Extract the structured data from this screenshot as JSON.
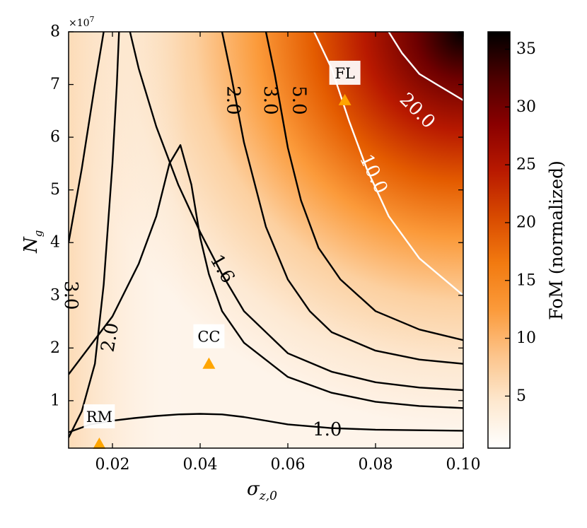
{
  "chart_data": {
    "type": "heatmap",
    "title": "",
    "xlabel": "σ",
    "xlabel_sub": "z,0",
    "ylabel": "N",
    "ylabel_sub": "g",
    "xlim": [
      0.01,
      0.1
    ],
    "ylim": [
      1000000,
      80000000
    ],
    "x_ticks": [
      0.02,
      0.04,
      0.06,
      0.08,
      0.1
    ],
    "x_tick_labels": [
      "0.02",
      "0.04",
      "0.06",
      "0.08",
      "0.10"
    ],
    "y_ticks": [
      1,
      2,
      3,
      4,
      5,
      6,
      7,
      8
    ],
    "y_tick_labels": [
      "1",
      "2",
      "3",
      "4",
      "5",
      "6",
      "7",
      "8"
    ],
    "y_multiplier": "×10",
    "y_multiplier_exp": "7",
    "colorbar": {
      "label": "FoM (normalized)",
      "range": [
        0.5,
        36.5
      ],
      "ticks": [
        5,
        10,
        15,
        20,
        25,
        30,
        35
      ],
      "tick_labels": [
        "5",
        "10",
        "15",
        "20",
        "25",
        "30",
        "35"
      ],
      "colormap": [
        "#ffffff",
        "#fde8cf",
        "#fcc48b",
        "#fb9a3a",
        "#f27a10",
        "#d84a00",
        "#b81900",
        "#8a0000",
        "#4c0000",
        "#000000"
      ]
    },
    "contours": [
      {
        "level": 1.0,
        "label": "1.0",
        "color": "#000000",
        "points": [
          [
            0.01,
            0.4
          ],
          [
            0.015,
            0.55
          ],
          [
            0.02,
            0.62
          ],
          [
            0.025,
            0.67
          ],
          [
            0.03,
            0.71
          ],
          [
            0.035,
            0.74
          ],
          [
            0.04,
            0.75
          ],
          [
            0.045,
            0.74
          ],
          [
            0.05,
            0.69
          ],
          [
            0.06,
            0.55
          ],
          [
            0.07,
            0.48
          ],
          [
            0.08,
            0.45
          ],
          [
            0.09,
            0.44
          ],
          [
            0.1,
            0.43
          ]
        ]
      },
      {
        "level": 1.6,
        "label": "1.6",
        "color": "#000000",
        "points": [
          [
            0.01,
            1.5
          ],
          [
            0.02,
            2.6
          ],
          [
            0.026,
            3.6
          ],
          [
            0.03,
            4.5
          ],
          [
            0.033,
            5.5
          ],
          [
            0.0355,
            5.85
          ],
          [
            0.038,
            5.1
          ],
          [
            0.04,
            4.1
          ],
          [
            0.042,
            3.4
          ],
          [
            0.045,
            2.7
          ],
          [
            0.05,
            2.1
          ],
          [
            0.06,
            1.45
          ],
          [
            0.07,
            1.15
          ],
          [
            0.08,
            0.98
          ],
          [
            0.09,
            0.9
          ],
          [
            0.1,
            0.86
          ]
        ]
      },
      {
        "level": 2.0,
        "label": "2.0",
        "color": "#000000",
        "points": [
          [
            0.01,
            0.3
          ],
          [
            0.013,
            0.8
          ],
          [
            0.016,
            1.7
          ],
          [
            0.018,
            3.2
          ],
          [
            0.02,
            5.5
          ],
          [
            0.021,
            7.0
          ],
          [
            0.0215,
            8.0
          ]
        ]
      },
      {
        "level": 2.0,
        "label": "2.0",
        "color": "#000000",
        "points": [
          [
            0.024,
            8.0
          ],
          [
            0.026,
            7.3
          ],
          [
            0.03,
            6.2
          ],
          [
            0.035,
            5.1
          ],
          [
            0.04,
            4.2
          ],
          [
            0.045,
            3.4
          ],
          [
            0.05,
            2.7
          ],
          [
            0.06,
            1.9
          ],
          [
            0.07,
            1.55
          ],
          [
            0.08,
            1.35
          ],
          [
            0.09,
            1.25
          ],
          [
            0.1,
            1.2
          ]
        ]
      },
      {
        "level": 3.0,
        "label": "3.0",
        "color": "#000000",
        "points": [
          [
            0.01,
            4.0
          ],
          [
            0.013,
            5.4
          ],
          [
            0.016,
            7.0
          ],
          [
            0.018,
            8.0
          ]
        ]
      },
      {
        "level": 3.0,
        "label": "3.0",
        "color": "#000000",
        "points": [
          [
            0.045,
            8.0
          ],
          [
            0.047,
            7.2
          ],
          [
            0.05,
            5.9
          ],
          [
            0.055,
            4.3
          ],
          [
            0.06,
            3.3
          ],
          [
            0.065,
            2.7
          ],
          [
            0.07,
            2.3
          ],
          [
            0.08,
            1.95
          ],
          [
            0.09,
            1.78
          ],
          [
            0.1,
            1.7
          ]
        ]
      },
      {
        "level": 5.0,
        "label": "5.0",
        "color": "#000000",
        "points": [
          [
            0.055,
            8.0
          ],
          [
            0.057,
            7.2
          ],
          [
            0.06,
            5.8
          ],
          [
            0.063,
            4.8
          ],
          [
            0.067,
            3.9
          ],
          [
            0.072,
            3.3
          ],
          [
            0.08,
            2.7
          ],
          [
            0.09,
            2.35
          ],
          [
            0.1,
            2.15
          ]
        ]
      },
      {
        "level": 10.0,
        "label": "10.0",
        "color": "#ffffff",
        "points": [
          [
            0.066,
            8.0
          ],
          [
            0.07,
            7.3
          ],
          [
            0.074,
            6.3
          ],
          [
            0.078,
            5.4
          ],
          [
            0.083,
            4.5
          ],
          [
            0.09,
            3.7
          ],
          [
            0.1,
            3.0
          ]
        ]
      },
      {
        "level": 20.0,
        "label": "20.0",
        "color": "#ffffff",
        "points": [
          [
            0.083,
            8.0
          ],
          [
            0.086,
            7.6
          ],
          [
            0.09,
            7.2
          ],
          [
            0.094,
            7.0
          ],
          [
            0.1,
            6.7
          ]
        ]
      }
    ],
    "contour_labels": [
      {
        "text": "1.0",
        "x": 0.069,
        "y": 0.45,
        "rotate": 0,
        "color": "#000000"
      },
      {
        "text": "1.6",
        "x": 0.045,
        "y": 3.5,
        "rotate": 60,
        "color": "#000000"
      },
      {
        "text": "2.0",
        "x": 0.0195,
        "y": 2.2,
        "rotate": -80,
        "color": "#000000"
      },
      {
        "text": "2.0",
        "x": 0.0475,
        "y": 6.7,
        "rotate": 90,
        "color": "#000000"
      },
      {
        "text": "3.0",
        "x": 0.056,
        "y": 6.7,
        "rotate": 90,
        "color": "#000000"
      },
      {
        "text": "5.0",
        "x": 0.0625,
        "y": 6.7,
        "rotate": 90,
        "color": "#000000"
      },
      {
        "text": "3.0",
        "x": 0.0105,
        "y": 3.0,
        "rotate": 90,
        "color": "#000000"
      },
      {
        "text": "10.0",
        "x": 0.0795,
        "y": 5.3,
        "rotate": 65,
        "color": "#ffffff"
      },
      {
        "text": "20.0",
        "x": 0.0895,
        "y": 6.5,
        "rotate": 45,
        "color": "#ffffff"
      }
    ],
    "markers": [
      {
        "label": "RM",
        "x": 0.017,
        "y": 0.18,
        "color": "#ffa500"
      },
      {
        "label": "CC",
        "x": 0.042,
        "y": 1.7,
        "color": "#ffa500"
      },
      {
        "label": "FL",
        "x": 0.073,
        "y": 6.7,
        "color": "#ffa500"
      }
    ]
  }
}
